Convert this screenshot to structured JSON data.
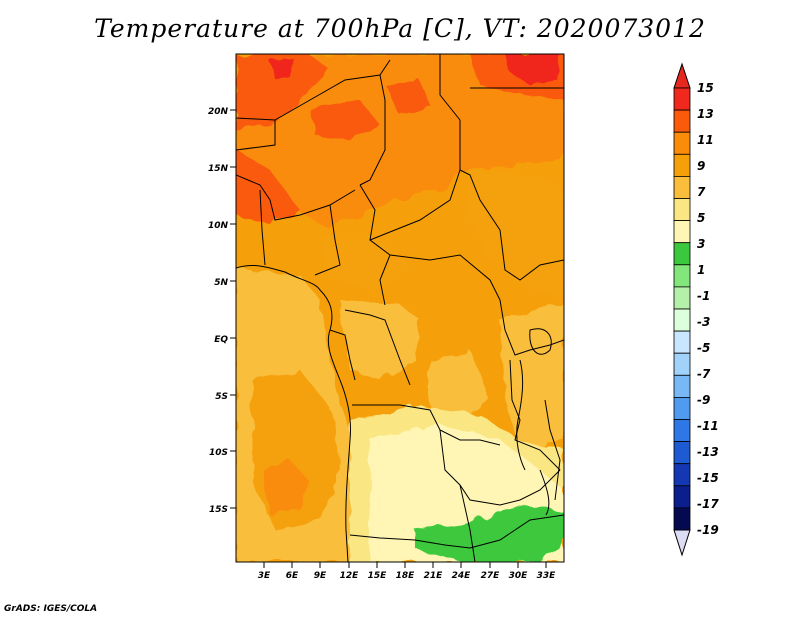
{
  "title": "Temperature at 700hPa [C], VT: 2020073012",
  "credit": "GrADS: IGES/COLA",
  "map": {
    "lat_labels": [
      "20N",
      "15N",
      "10N",
      "5N",
      "EQ",
      "5S",
      "10S",
      "15S"
    ],
    "lon_labels": [
      "3E",
      "6E",
      "9E",
      "12E",
      "15E",
      "18E",
      "21E",
      "24E",
      "27E",
      "30E",
      "33E"
    ]
  },
  "colorbar": {
    "labels": [
      "15",
      "13",
      "11",
      "9",
      "7",
      "5",
      "3",
      "1",
      "-1",
      "-3",
      "-5",
      "-7",
      "-9",
      "-11",
      "-13",
      "-15",
      "-17",
      "-19"
    ],
    "colors": [
      "#f0281e",
      "#fa5a0a",
      "#fa8c0a",
      "#f5a00a",
      "#fabe3c",
      "#fae682",
      "#fff5b4",
      "#3cc83c",
      "#82e67d",
      "#b4f0aa",
      "#dcffdc",
      "#c8e6ff",
      "#a0d2fa",
      "#78b9f5",
      "#509bf0",
      "#2d78e6",
      "#1e5ad2",
      "#1438b4",
      "#0a1e8c",
      "#050a50"
    ],
    "top_color": "#e6281e",
    "bottom_color": "#dcdcf5"
  }
}
